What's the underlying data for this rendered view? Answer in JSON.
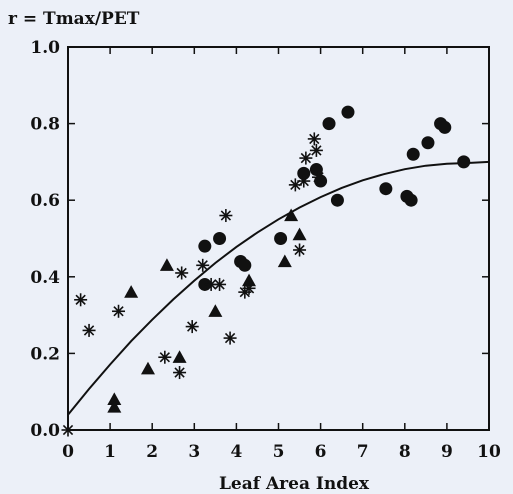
{
  "chart_data": {
    "type": "scatter",
    "title": "r = Tmax/PET",
    "xlabel": "Leaf Area Index",
    "ylabel": "",
    "xlim": [
      0,
      10
    ],
    "ylim": [
      0,
      1
    ],
    "x_ticks": [
      0,
      1,
      2,
      3,
      4,
      5,
      6,
      7,
      8,
      9,
      10
    ],
    "y_ticks": [
      0.0,
      0.2,
      0.4,
      0.6,
      0.8,
      1.0
    ],
    "x_tick_labels": [
      "0",
      "1",
      "2",
      "3",
      "4",
      "5",
      "6",
      "7",
      "8",
      "9",
      "10"
    ],
    "y_tick_labels": [
      "0.0",
      "0.2",
      "0.4",
      "0.6",
      "0.8",
      "1.0"
    ],
    "grid": false,
    "legend": "none",
    "series": [
      {
        "marker": "circle",
        "points": [
          [
            3.25,
            0.48
          ],
          [
            3.6,
            0.5
          ],
          [
            3.25,
            0.38
          ],
          [
            4.1,
            0.44
          ],
          [
            4.2,
            0.43
          ],
          [
            5.05,
            0.5
          ],
          [
            5.6,
            0.67
          ],
          [
            5.9,
            0.68
          ],
          [
            6.0,
            0.65
          ],
          [
            6.2,
            0.8
          ],
          [
            6.65,
            0.83
          ],
          [
            6.4,
            0.6
          ],
          [
            7.55,
            0.63
          ],
          [
            8.05,
            0.61
          ],
          [
            8.15,
            0.6
          ],
          [
            8.2,
            0.72
          ],
          [
            8.55,
            0.75
          ],
          [
            8.85,
            0.8
          ],
          [
            8.95,
            0.79
          ],
          [
            9.4,
            0.7
          ]
        ]
      },
      {
        "marker": "triangle",
        "points": [
          [
            1.1,
            0.08
          ],
          [
            1.1,
            0.06
          ],
          [
            1.5,
            0.36
          ],
          [
            1.9,
            0.16
          ],
          [
            2.35,
            0.43
          ],
          [
            2.65,
            0.19
          ],
          [
            3.5,
            0.31
          ],
          [
            4.3,
            0.39
          ],
          [
            5.15,
            0.44
          ],
          [
            5.3,
            0.56
          ],
          [
            5.5,
            0.51
          ]
        ]
      },
      {
        "marker": "asterisk",
        "points": [
          [
            0.0,
            0.0
          ],
          [
            0.3,
            0.34
          ],
          [
            0.5,
            0.26
          ],
          [
            1.2,
            0.31
          ],
          [
            2.3,
            0.19
          ],
          [
            2.65,
            0.15
          ],
          [
            2.7,
            0.41
          ],
          [
            2.95,
            0.27
          ],
          [
            3.2,
            0.43
          ],
          [
            3.4,
            0.38
          ],
          [
            3.6,
            0.38
          ],
          [
            3.75,
            0.56
          ],
          [
            3.85,
            0.24
          ],
          [
            4.2,
            0.36
          ],
          [
            4.3,
            0.37
          ],
          [
            5.4,
            0.64
          ],
          [
            5.5,
            0.47
          ],
          [
            5.6,
            0.65
          ],
          [
            5.65,
            0.71
          ],
          [
            5.85,
            0.76
          ],
          [
            5.9,
            0.73
          ],
          [
            5.95,
            0.66
          ]
        ]
      }
    ],
    "fit_curve": {
      "points": [
        [
          0,
          0.04
        ],
        [
          0.5,
          0.107
        ],
        [
          1,
          0.171
        ],
        [
          1.5,
          0.232
        ],
        [
          2,
          0.288
        ],
        [
          2.5,
          0.341
        ],
        [
          3,
          0.39
        ],
        [
          3.5,
          0.436
        ],
        [
          4,
          0.478
        ],
        [
          4.5,
          0.516
        ],
        [
          5,
          0.55
        ],
        [
          5.5,
          0.581
        ],
        [
          6,
          0.608
        ],
        [
          6.5,
          0.632
        ],
        [
          7,
          0.652
        ],
        [
          7.5,
          0.668
        ],
        [
          8,
          0.681
        ],
        [
          8.5,
          0.69
        ],
        [
          9,
          0.695
        ],
        [
          9.5,
          0.697
        ],
        [
          10,
          0.7
        ]
      ]
    }
  },
  "colors": {
    "background": "#ecf0f8",
    "ink": "#111111"
  }
}
